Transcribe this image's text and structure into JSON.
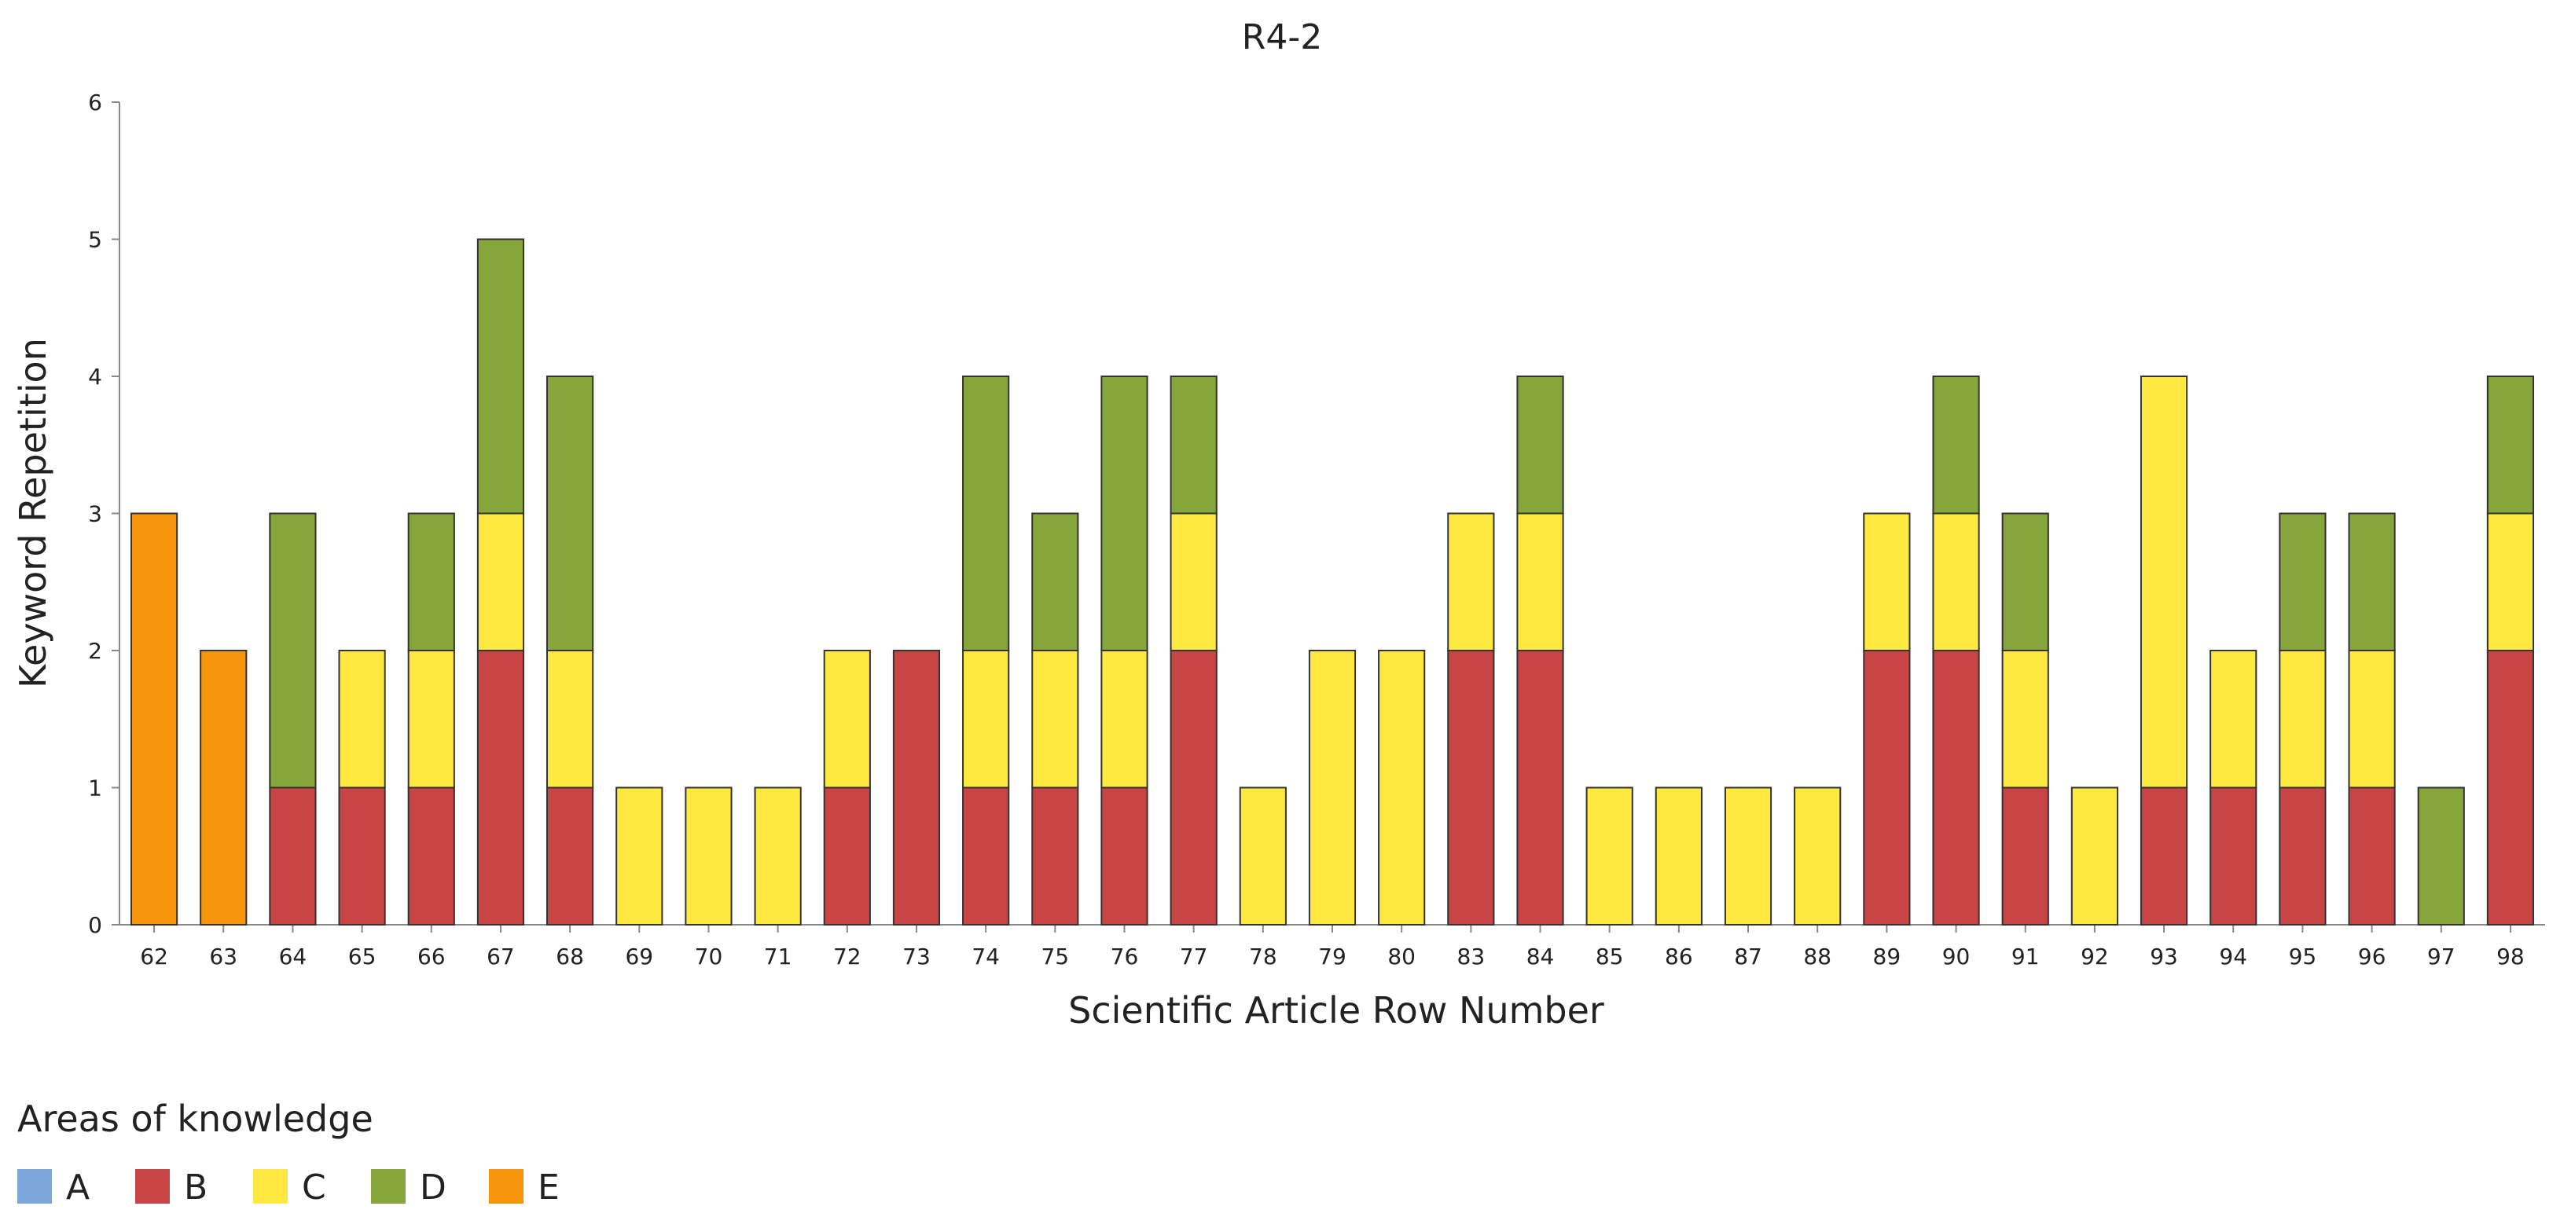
{
  "chart_data": {
    "type": "bar",
    "stacked": true,
    "title": "R4-2",
    "xlabel": "Scientific Article Row Number",
    "ylabel": "Keyword Repetition",
    "ylim": [
      0,
      6
    ],
    "yticks": [
      "0",
      "1",
      "2",
      "3",
      "4",
      "5",
      "6"
    ],
    "grid": false,
    "legend_title": "Areas of knowledge",
    "legend_position": "bottom-left",
    "categories": [
      "62",
      "63",
      "64",
      "65",
      "66",
      "67",
      "68",
      "69",
      "70",
      "71",
      "72",
      "73",
      "74",
      "75",
      "76",
      "77",
      "78",
      "79",
      "80",
      "83",
      "84",
      "85",
      "86",
      "87",
      "88",
      "89",
      "90",
      "91",
      "92",
      "93",
      "94",
      "95",
      "96",
      "97",
      "98"
    ],
    "series": [
      {
        "name": "A",
        "color": "#7BA7DA",
        "values": [
          0,
          0,
          0,
          0,
          0,
          0,
          0,
          0,
          0,
          0,
          0,
          0,
          0,
          0,
          0,
          0,
          0,
          0,
          0,
          0,
          0,
          0,
          0,
          0,
          0,
          0,
          0,
          0,
          0,
          0,
          0,
          0,
          0,
          0,
          0
        ]
      },
      {
        "name": "B",
        "color": "#C94545",
        "values": [
          0,
          0,
          1,
          1,
          1,
          2,
          1,
          0,
          0,
          0,
          1,
          2,
          1,
          1,
          1,
          2,
          0,
          0,
          0,
          2,
          2,
          0,
          0,
          0,
          0,
          2,
          2,
          1,
          0,
          1,
          1,
          1,
          1,
          0,
          2
        ]
      },
      {
        "name": "C",
        "color": "#FFE83F",
        "values": [
          0,
          0,
          0,
          1,
          1,
          1,
          1,
          1,
          1,
          1,
          1,
          0,
          1,
          1,
          1,
          1,
          1,
          2,
          2,
          1,
          1,
          1,
          1,
          1,
          1,
          1,
          1,
          1,
          1,
          3,
          1,
          1,
          1,
          0,
          1
        ]
      },
      {
        "name": "D",
        "color": "#86A53A",
        "values": [
          0,
          0,
          2,
          0,
          1,
          2,
          2,
          0,
          0,
          0,
          0,
          0,
          2,
          1,
          2,
          1,
          0,
          0,
          0,
          0,
          1,
          0,
          0,
          0,
          0,
          0,
          1,
          1,
          0,
          0,
          0,
          1,
          1,
          1,
          1
        ]
      },
      {
        "name": "E",
        "color": "#F7960C",
        "values": [
          3,
          2,
          0,
          0,
          0,
          0,
          0,
          0,
          0,
          0,
          0,
          0,
          0,
          0,
          0,
          0,
          0,
          0,
          0,
          0,
          0,
          0,
          0,
          0,
          0,
          0,
          0,
          0,
          0,
          0,
          0,
          0,
          0,
          0,
          0
        ]
      }
    ]
  }
}
